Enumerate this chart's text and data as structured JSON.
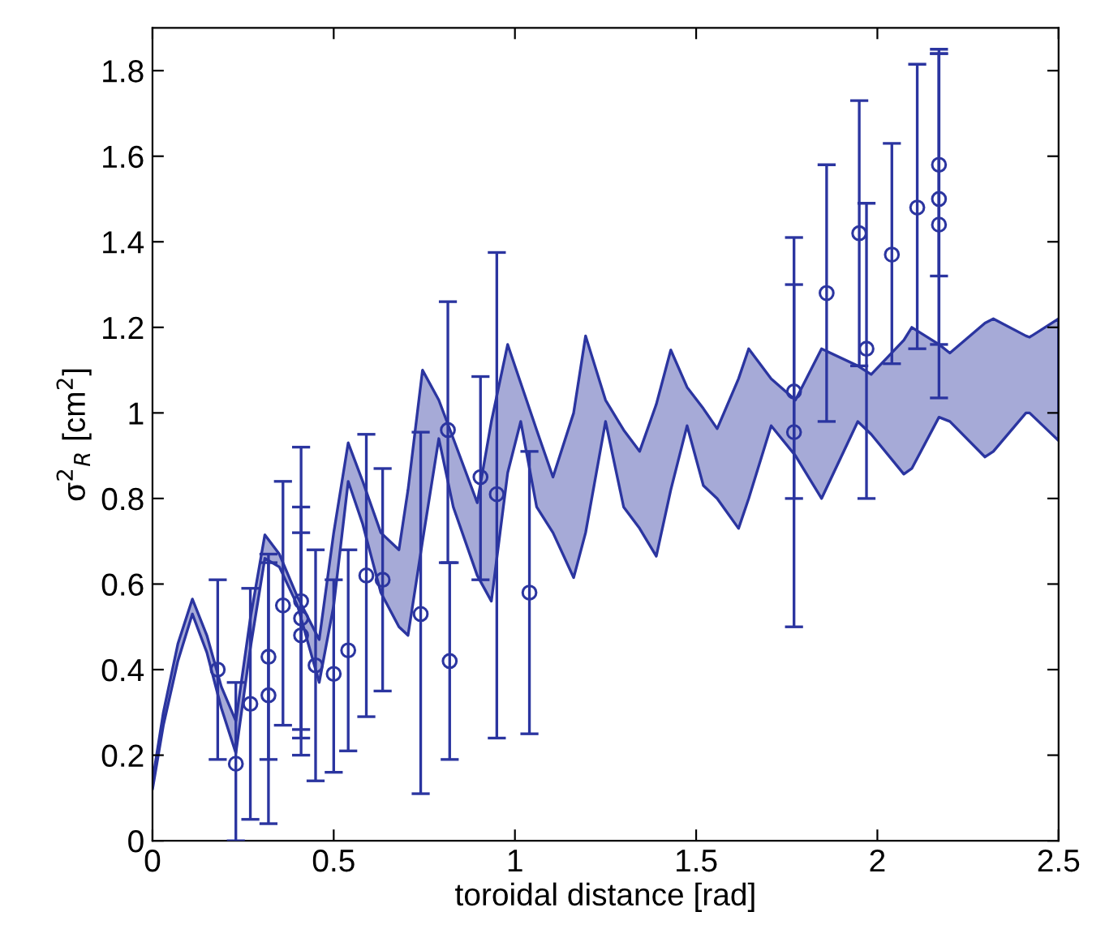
{
  "chart_data": {
    "type": "scatter",
    "xlabel": "toroidal distance [rad]",
    "ylabel": "σ$^{2}$$_{R}$ [cm$^{2}$]",
    "xlim": [
      0,
      2.5
    ],
    "xticks": [
      0,
      0.5,
      1,
      1.5,
      2,
      2.5
    ],
    "ylim": [
      0,
      1.9
    ],
    "yticks": [
      0,
      0.2,
      0.4,
      0.6,
      0.8,
      1,
      1.2,
      1.4,
      1.6,
      1.8
    ],
    "grid": false,
    "legend": false,
    "series": [
      {
        "type": "area",
        "color": "#2b35a0",
        "values": [
          null,
          null,
          null,
          null,
          null,
          null,
          null,
          null,
          null,
          null,
          null,
          null,
          null,
          null,
          null,
          null,
          null,
          null,
          null,
          null,
          null,
          null,
          null,
          null,
          null,
          null,
          null,
          null,
          null,
          null,
          null,
          null,
          null,
          null,
          null,
          null,
          null,
          null,
          null,
          null,
          null,
          null,
          null,
          null,
          null,
          null,
          null,
          null,
          null,
          null,
          null,
          null,
          null
        ],
        "x": [
          0,
          0.03,
          0.07,
          0.11,
          0.15,
          0.19,
          0.23,
          0.27,
          0.31,
          0.35,
          0.4,
          0.46,
          0.5,
          0.54,
          0.58,
          0.63,
          0.68,
          0.705,
          0.745,
          0.79,
          0.83,
          0.896,
          0.935,
          0.98,
          1.016,
          1.06,
          1.105,
          1.162,
          1.195,
          1.25,
          1.3,
          1.344,
          1.39,
          1.43,
          1.475,
          1.52,
          1.558,
          1.617,
          1.645,
          1.707,
          1.774,
          1.846,
          1.946,
          1.983,
          2.073,
          2.095,
          2.17,
          2.2,
          2.297,
          2.32,
          2.41,
          2.42,
          2.5
        ],
        "upper": [
          0.14,
          0.3,
          0.46,
          0.565,
          0.48,
          0.36,
          0.28,
          0.52,
          0.715,
          0.67,
          0.57,
          0.47,
          0.72,
          0.93,
          0.84,
          0.72,
          0.68,
          0.82,
          1.1,
          1.03,
          0.94,
          0.79,
          0.98,
          1.16,
          1.07,
          0.96,
          0.85,
          1.0,
          1.18,
          1.03,
          0.96,
          0.91,
          1.02,
          1.147,
          1.06,
          1.01,
          0.963,
          1.08,
          1.15,
          1.08,
          1.03,
          1.15,
          1.11,
          1.09,
          1.17,
          1.2,
          1.16,
          1.14,
          1.21,
          1.22,
          1.18,
          1.177,
          1.22
        ],
        "lower": [
          0.12,
          0.27,
          0.42,
          0.53,
          0.44,
          0.31,
          0.205,
          0.45,
          0.66,
          0.64,
          0.55,
          0.37,
          0.55,
          0.84,
          0.74,
          0.58,
          0.5,
          0.48,
          0.7,
          0.94,
          0.78,
          0.62,
          0.56,
          0.86,
          0.98,
          0.78,
          0.72,
          0.615,
          0.72,
          0.98,
          0.78,
          0.73,
          0.665,
          0.82,
          0.97,
          0.83,
          0.8,
          0.73,
          0.8,
          0.97,
          0.9,
          0.8,
          0.98,
          0.95,
          0.857,
          0.87,
          0.99,
          0.98,
          0.897,
          0.91,
          1.0,
          1.0,
          0.935
        ]
      },
      {
        "type": "scatter",
        "color": "#2b35a0",
        "marker": "circle",
        "x": [
          0.18,
          0.23,
          0.27,
          0.32,
          0.32,
          0.36,
          0.41,
          0.41,
          0.41,
          0.45,
          0.5,
          0.54,
          0.59,
          0.635,
          0.74,
          0.815,
          0.82,
          0.905,
          0.95,
          1.04,
          1.77,
          1.77,
          1.86,
          1.95,
          1.97,
          2.04,
          2.11,
          2.17,
          2.17,
          2.17
        ],
        "values": [
          0.4,
          0.18,
          0.32,
          0.43,
          0.34,
          0.55,
          0.56,
          0.52,
          0.48,
          0.41,
          0.39,
          0.445,
          0.62,
          0.61,
          0.53,
          0.96,
          0.42,
          0.85,
          0.81,
          0.58,
          1.05,
          0.955,
          1.28,
          1.42,
          1.15,
          1.37,
          1.48,
          1.58,
          1.5,
          1.44
        ],
        "errors": [
          [
            0.19,
            0.61
          ],
          [
            0,
            0.37
          ],
          [
            0.05,
            0.59
          ],
          [
            0.19,
            0.67
          ],
          [
            0.04,
            0.65
          ],
          [
            0.27,
            0.84
          ],
          [
            0.2,
            0.92
          ],
          [
            0.24,
            0.78
          ],
          [
            0.26,
            0.72
          ],
          [
            0.14,
            0.68
          ],
          [
            0.16,
            0.61
          ],
          [
            0.21,
            0.68
          ],
          [
            0.29,
            0.95
          ],
          [
            0.35,
            0.87
          ],
          [
            0.11,
            0.955
          ],
          [
            0.65,
            1.26
          ],
          [
            0.19,
            0.65
          ],
          [
            0.61,
            1.085
          ],
          [
            0.24,
            1.375
          ],
          [
            0.25,
            0.91
          ],
          [
            0.8,
            1.3
          ],
          [
            0.5,
            1.41
          ],
          [
            0.98,
            1.58
          ],
          [
            1.11,
            1.73
          ],
          [
            0.8,
            1.49
          ],
          [
            1.115,
            1.63
          ],
          [
            1.15,
            1.815
          ],
          [
            1.32,
            1.85
          ],
          [
            1.16,
            1.84
          ],
          [
            1.035,
            1.84
          ]
        ]
      }
    ]
  }
}
